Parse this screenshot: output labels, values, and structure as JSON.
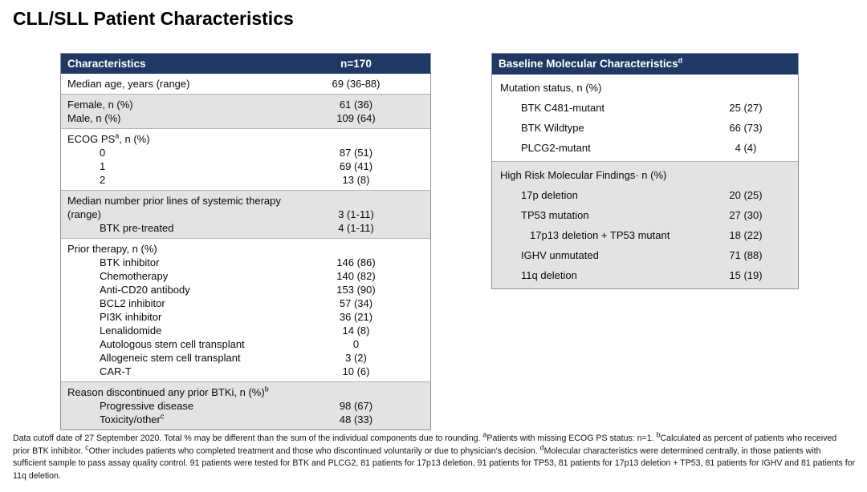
{
  "title": "CLL/SLL Patient Characteristics",
  "colors": {
    "header_bg": "#1F3864",
    "band_gray": "#E3E3E3",
    "border": "#8D939C",
    "header_text": "#FFFFFF"
  },
  "left_table": {
    "header": {
      "col1": "Characteristics",
      "col2": "n=170"
    },
    "sections": [
      {
        "shade": "white",
        "rows": [
          {
            "label": "Median age, years (range)",
            "value": "69 (36-88)"
          }
        ]
      },
      {
        "shade": "gray",
        "rows": [
          {
            "label": "Female, n (%)",
            "value": "61 (36)"
          },
          {
            "label": "Male, n (%)",
            "value": "109 (64)"
          }
        ]
      },
      {
        "shade": "white",
        "rows": [
          {
            "pre": "ECOG PS",
            "sup": "a",
            "post": ", n (%)",
            "value": ""
          },
          {
            "label": "0",
            "indent": 1,
            "value": "87 (51)"
          },
          {
            "label": "1",
            "indent": 1,
            "value": "69 (41)"
          },
          {
            "label": "2",
            "indent": 1,
            "value": "13 (8)"
          }
        ]
      },
      {
        "shade": "gray",
        "rows": [
          {
            "label": "Median number prior lines of systemic therapy (range)",
            "value": "3 (1-11)"
          },
          {
            "label": "BTK pre-treated",
            "indent": 1,
            "value": "4 (1-11)"
          }
        ]
      },
      {
        "shade": "white",
        "rows": [
          {
            "label": "Prior therapy, n (%)",
            "value": ""
          },
          {
            "label": "BTK inhibitor",
            "indent": 1,
            "value": "146 (86)"
          },
          {
            "label": "Chemotherapy",
            "indent": 1,
            "value": "140 (82)"
          },
          {
            "label": "Anti-CD20 antibody",
            "indent": 1,
            "value": "153 (90)"
          },
          {
            "label": "BCL2 inhibitor",
            "indent": 1,
            "value": "57 (34)"
          },
          {
            "label": "PI3K inhibitor",
            "indent": 1,
            "value": "36 (21)"
          },
          {
            "label": "Lenalidomide",
            "indent": 1,
            "value": "14 (8)"
          },
          {
            "label": "Autologous stem cell transplant",
            "indent": 1,
            "value": "0"
          },
          {
            "label": "Allogeneic stem cell transplant",
            "indent": 1,
            "value": "3 (2)"
          },
          {
            "label": "CAR-T",
            "indent": 1,
            "value": "10 (6)"
          }
        ]
      },
      {
        "shade": "gray",
        "rows": [
          {
            "pre": "Reason discontinued any prior BTKi, n (%)",
            "sup": "b",
            "post": "",
            "value": ""
          },
          {
            "label": "Progressive disease",
            "indent": 1,
            "value": "98 (67)"
          },
          {
            "pre": "Toxicity/other",
            "sup": "c",
            "post": "",
            "indent": 1,
            "value": "48 (33)"
          }
        ]
      }
    ]
  },
  "right_table": {
    "header": {
      "pre": "Baseline Molecular Characteristics",
      "sup": "d"
    },
    "sections": [
      {
        "shade": "white",
        "rows": [
          {
            "label": "Mutation status, n (%)",
            "value": ""
          },
          {
            "label": "BTK C481-mutant",
            "indent": 1,
            "value": "25 (27)"
          },
          {
            "label": "BTK Wildtype",
            "indent": 1,
            "value": "66 (73)"
          },
          {
            "label": "PLCG2-mutant",
            "indent": 1,
            "value": "4 (4)"
          }
        ]
      },
      {
        "shade": "gray",
        "rows": [
          {
            "label": "High Risk Molecular Findings· n (%)",
            "value": ""
          },
          {
            "label": "17p deletion",
            "indent": 1,
            "value": "20 (25)"
          },
          {
            "label": "TP53 mutation",
            "indent": 1,
            "value": "27 (30)"
          },
          {
            "label": "17p13 deletion + TP53 mutant",
            "indent": 2,
            "value": "18 (22)"
          },
          {
            "label": "IGHV unmutated",
            "indent": 1,
            "value": "71 (88)"
          },
          {
            "label": "11q deletion",
            "indent": 1,
            "value": "15 (19)"
          }
        ]
      }
    ]
  },
  "footnote": {
    "segments": [
      {
        "text": "Data cutoff date of 27 September 2020. Total % may be different than the sum of the individual components due to rounding. "
      },
      {
        "sup": "a",
        "text": "Patients with missing ECOG PS status: n=1. "
      },
      {
        "sup": "b",
        "text": "Calculated as percent of patients who received prior BTK inhibitor. "
      },
      {
        "sup": "c",
        "text": "Other includes patients who completed treatment and those who discontinued voluntarily or due to physician's decision. "
      },
      {
        "sup": "d",
        "text": "Molecular characteristics were determined centrally, in those patients with sufficient sample to pass assay quality control. 91 patients were tested for BTK and PLCG2, 81 patients for 17p13 deletion, 91 patients for TP53, 81 patients for 17p13 deletion + TP53, 81 patients for IGHV and 81 patients for 11q deletion."
      }
    ]
  }
}
